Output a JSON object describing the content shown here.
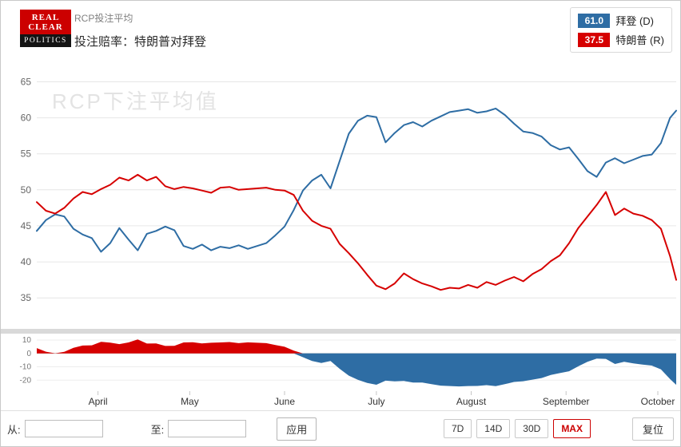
{
  "header": {
    "logo": {
      "line1": "REAL",
      "line2": "CLEAR",
      "line3": "POLITICS"
    },
    "title": "RCP投注平均",
    "subtitle": "投注赔率：特朗普对拜登"
  },
  "legend": {
    "items": [
      {
        "value": "61.0",
        "label": "拜登 (D)",
        "color": "#2e6da4"
      },
      {
        "value": "37.5",
        "label": "特朗普 (R)",
        "color": "#d60000"
      }
    ]
  },
  "watermark": "RCP下注平均值",
  "chart_data": {
    "type": "line",
    "title": "投注赔率：特朗普对拜登",
    "x_max": 209,
    "x": [
      0,
      3,
      6,
      9,
      12,
      15,
      18,
      21,
      24,
      27,
      30,
      33,
      36,
      39,
      42,
      45,
      48,
      51,
      54,
      57,
      60,
      63,
      66,
      69,
      72,
      75,
      78,
      81,
      84,
      87,
      90,
      93,
      96,
      99,
      102,
      105,
      108,
      111,
      114,
      117,
      120,
      123,
      126,
      129,
      132,
      135,
      138,
      141,
      144,
      147,
      150,
      153,
      156,
      159,
      162,
      165,
      168,
      171,
      174,
      177,
      180,
      183,
      186,
      189,
      192,
      195,
      198,
      201,
      204,
      207,
      209
    ],
    "x_ticks": [
      {
        "day": 20,
        "label": "April"
      },
      {
        "day": 50,
        "label": "May"
      },
      {
        "day": 81,
        "label": "June"
      },
      {
        "day": 111,
        "label": "July"
      },
      {
        "day": 142,
        "label": "August"
      },
      {
        "day": 173,
        "label": "September"
      },
      {
        "day": 203,
        "label": "October"
      }
    ],
    "y_axis": {
      "ticks": [
        35,
        40,
        45,
        50,
        55,
        60,
        65
      ],
      "range": [
        32.8,
        66.5
      ]
    },
    "series": [
      {
        "name": "拜登 (D)",
        "color": "#2e6da4",
        "current": 61.0,
        "values": [
          44.3,
          45.8,
          46.6,
          46.3,
          44.6,
          43.8,
          43.3,
          41.4,
          42.6,
          44.7,
          43.1,
          41.6,
          43.9,
          44.3,
          44.9,
          44.4,
          42.2,
          41.8,
          42.4,
          41.6,
          42.1,
          41.9,
          42.3,
          41.8,
          42.2,
          42.6,
          43.7,
          44.9,
          47.2,
          49.9,
          51.3,
          52.1,
          50.2,
          54.0,
          57.8,
          59.6,
          60.3,
          60.1,
          56.6,
          57.9,
          59.0,
          59.4,
          58.8,
          59.6,
          60.2,
          60.8,
          61.0,
          61.2,
          60.7,
          60.9,
          61.3,
          60.4,
          59.2,
          58.1,
          57.9,
          57.4,
          56.2,
          55.6,
          55.9,
          54.3,
          52.6,
          51.8,
          53.8,
          54.4,
          53.7,
          54.2,
          54.7,
          54.9,
          56.5,
          60.0,
          61.0
        ]
      },
      {
        "name": "特朗普 (R)",
        "color": "#d60000",
        "current": 37.5,
        "values": [
          48.3,
          47.1,
          46.7,
          47.5,
          48.8,
          49.7,
          49.4,
          50.1,
          50.7,
          51.7,
          51.3,
          52.1,
          51.3,
          51.8,
          50.5,
          50.1,
          50.4,
          50.2,
          49.9,
          49.6,
          50.3,
          50.4,
          50.0,
          50.1,
          50.2,
          50.3,
          50.0,
          49.9,
          49.3,
          47.1,
          45.7,
          45.0,
          44.6,
          42.5,
          41.2,
          39.8,
          38.2,
          36.7,
          36.2,
          37.0,
          38.4,
          37.6,
          37.0,
          36.6,
          36.1,
          36.4,
          36.3,
          36.8,
          36.4,
          37.2,
          36.8,
          37.4,
          37.9,
          37.3,
          38.3,
          39.0,
          40.1,
          40.9,
          42.6,
          44.7,
          46.3,
          47.9,
          49.7,
          46.5,
          47.4,
          46.7,
          46.4,
          45.8,
          44.6,
          40.8,
          37.5
        ]
      }
    ],
    "navigator": {
      "type": "area",
      "derived": "trump_minus_biden",
      "ticks": [
        10,
        0,
        -10,
        -20
      ],
      "range": [
        -27,
        13
      ]
    }
  },
  "controls": {
    "from_label": "从:",
    "from_value": "",
    "to_label": "至:",
    "to_value": "",
    "apply_label": "应用",
    "range_buttons": [
      "7D",
      "14D",
      "30D",
      "MAX"
    ],
    "active_range": "MAX",
    "reset_label": "复位"
  }
}
